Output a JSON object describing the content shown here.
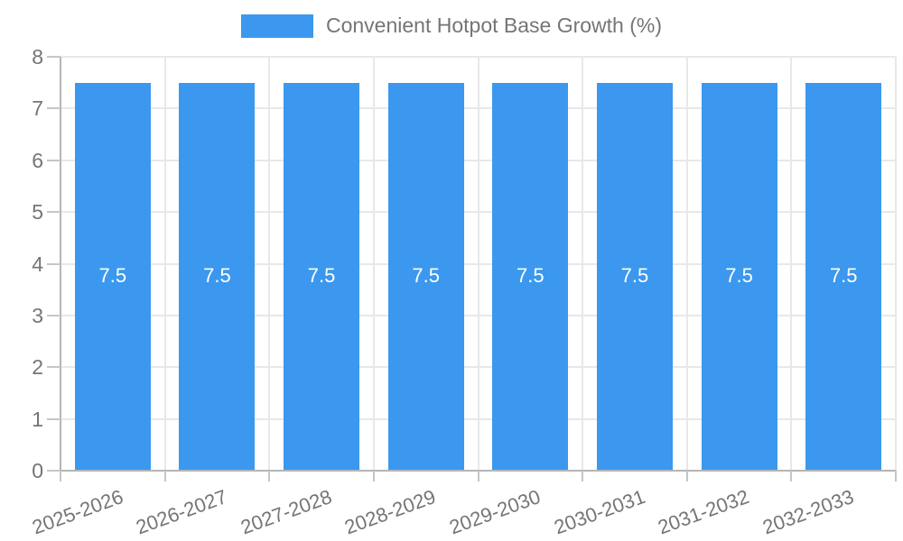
{
  "legend": {
    "label": "Convenient Hotpot Base Growth (%)"
  },
  "chart_data": {
    "type": "bar",
    "title": "Convenient Hotpot Base Growth (%)",
    "categories": [
      "2025-2026",
      "2026-2027",
      "2027-2028",
      "2028-2029",
      "2029-2030",
      "2030-2031",
      "2031-2032",
      "2032-2033"
    ],
    "values": [
      7.5,
      7.5,
      7.5,
      7.5,
      7.5,
      7.5,
      7.5,
      7.5
    ],
    "value_labels": [
      "7.5",
      "7.5",
      "7.5",
      "7.5",
      "7.5",
      "7.5",
      "7.5",
      "7.5"
    ],
    "xlabel": "",
    "ylabel": "",
    "ylim": [
      0,
      8
    ],
    "yticks": [
      0,
      1,
      2,
      3,
      4,
      5,
      6,
      7,
      8
    ],
    "ytick_labels": [
      "0",
      "1",
      "2",
      "3",
      "4",
      "5",
      "6",
      "7",
      "8"
    ],
    "grid": true,
    "legend_position": "top",
    "colors": {
      "bar": "#3B98EE",
      "bar_label_text": "#ffffff",
      "axis_text": "#757575",
      "gridline": "#e8e8e8",
      "axis_line": "#b5b5b5",
      "tick_mark": "#c6c6c6",
      "background": "#ffffff"
    }
  }
}
